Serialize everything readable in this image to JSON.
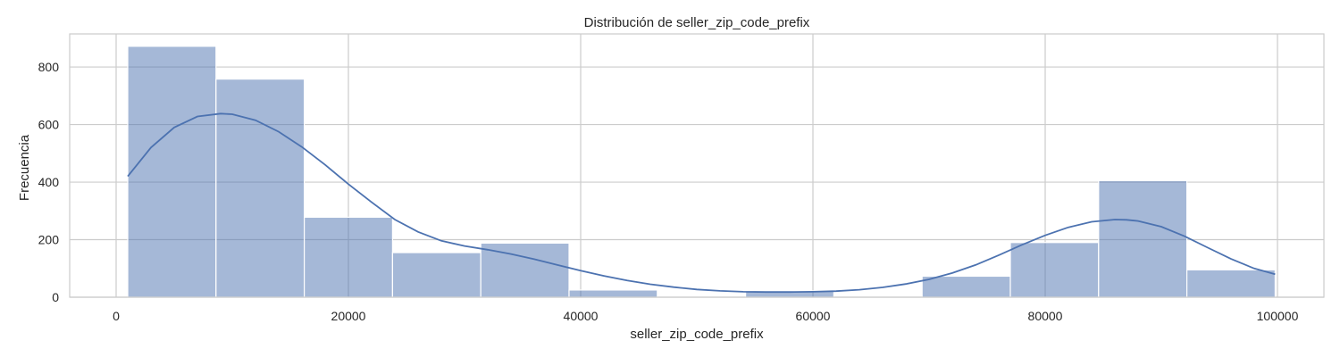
{
  "chart_data": {
    "type": "bar",
    "title": "Distribución de seller_zip_code_prefix",
    "xlabel": "seller_zip_code_prefix",
    "ylabel": "Frecuencia",
    "xlim": [
      -4000,
      104000
    ],
    "ylim": [
      0,
      915
    ],
    "grid": true,
    "x_ticks": [
      0,
      20000,
      40000,
      60000,
      80000,
      100000
    ],
    "y_ticks": [
      0,
      200,
      400,
      600,
      800
    ],
    "bins": [
      {
        "start": 1000,
        "end": 8600,
        "count": 872
      },
      {
        "start": 8600,
        "end": 16200,
        "count": 758
      },
      {
        "start": 16200,
        "end": 23800,
        "count": 278
      },
      {
        "start": 23800,
        "end": 31400,
        "count": 155
      },
      {
        "start": 31400,
        "end": 39000,
        "count": 188
      },
      {
        "start": 39000,
        "end": 46600,
        "count": 25
      },
      {
        "start": 46600,
        "end": 54200,
        "count": 0
      },
      {
        "start": 54200,
        "end": 61800,
        "count": 22
      },
      {
        "start": 61800,
        "end": 69400,
        "count": 0
      },
      {
        "start": 69400,
        "end": 77000,
        "count": 73
      },
      {
        "start": 77000,
        "end": 84600,
        "count": 190
      },
      {
        "start": 84600,
        "end": 92200,
        "count": 405
      },
      {
        "start": 92200,
        "end": 99800,
        "count": 95
      }
    ],
    "kde": {
      "x": [
        1000,
        3000,
        5000,
        7000,
        9000,
        10000,
        12000,
        14000,
        16000,
        18000,
        20000,
        22000,
        24000,
        26000,
        28000,
        30000,
        32000,
        34000,
        36000,
        38000,
        40000,
        42000,
        44000,
        46000,
        48000,
        50000,
        52000,
        54000,
        56000,
        58000,
        60000,
        62000,
        64000,
        66000,
        68000,
        70000,
        72000,
        74000,
        76000,
        78000,
        80000,
        82000,
        84000,
        86000,
        87000,
        88000,
        90000,
        92000,
        94000,
        96000,
        98000,
        99800
      ],
      "y": [
        420,
        520,
        590,
        628,
        638,
        636,
        615,
        575,
        522,
        460,
        393,
        330,
        270,
        227,
        196,
        178,
        165,
        150,
        132,
        112,
        92,
        74,
        58,
        45,
        35,
        27,
        22,
        19,
        18,
        18,
        19,
        21,
        26,
        34,
        46,
        62,
        84,
        112,
        146,
        182,
        215,
        243,
        262,
        270,
        269,
        265,
        245,
        212,
        172,
        133,
        100,
        80
      ]
    }
  }
}
